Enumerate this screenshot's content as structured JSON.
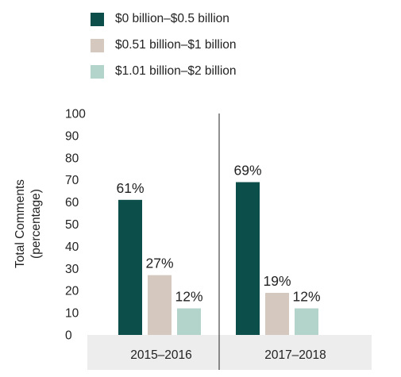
{
  "chart_data": {
    "type": "bar",
    "categories": [
      "2015–2016",
      "2017–2018"
    ],
    "series": [
      {
        "name": "$0 billion–$0.5 billion",
        "values": [
          61,
          69
        ],
        "labels": [
          "61%",
          "69%"
        ],
        "color": "#0c4e4a"
      },
      {
        "name": "$0.51 billion–$1 billion",
        "values": [
          27,
          19
        ],
        "labels": [
          "27%",
          "19%"
        ],
        "color": "#d4c8bf"
      },
      {
        "name": "$1.01 billion–$2 billion",
        "values": [
          12,
          12
        ],
        "labels": [
          "12%",
          "12%"
        ],
        "color": "#b3d4cb"
      }
    ],
    "ylabel_line1": "Total Comments",
    "ylabel_line2": "(percentage)",
    "ylim": [
      0,
      100
    ],
    "yticks": [
      0,
      10,
      20,
      30,
      40,
      50,
      60,
      70,
      80,
      90,
      100
    ],
    "legend_position": "top",
    "category_band_color": "#ededed",
    "divider_color": "#222222"
  }
}
